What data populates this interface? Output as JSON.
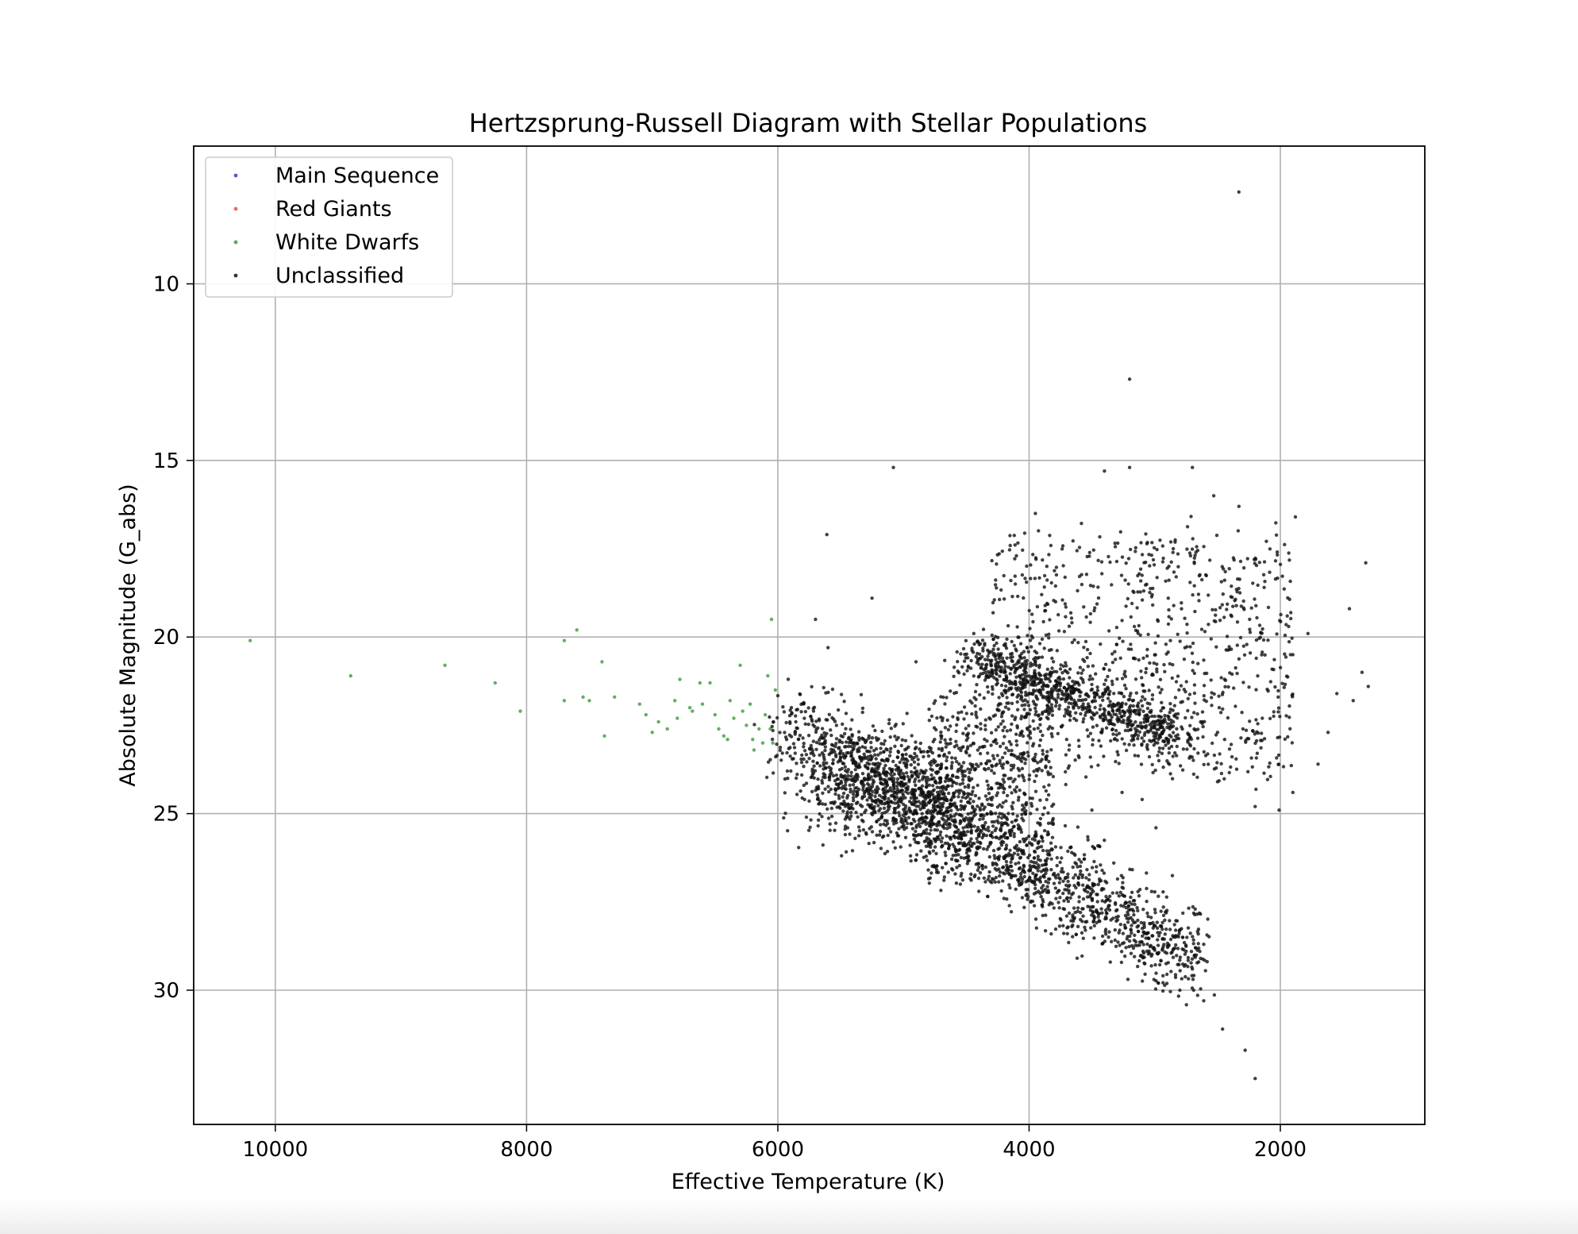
{
  "chart_data": {
    "type": "scatter",
    "title": "Hertzsprung-Russell Diagram with Stellar Populations",
    "xlabel": "Effective Temperature (K)",
    "ylabel": "Absolute Magnitude (G_abs)",
    "xlim": [
      10650,
      850
    ],
    "ylim": [
      33.8,
      6.1
    ],
    "x_inverted": true,
    "y_inverted": true,
    "x_ticks": [
      10000,
      8000,
      6000,
      4000,
      2000
    ],
    "y_ticks": [
      10,
      15,
      20,
      25,
      30
    ],
    "grid": true,
    "legend_position": "top-left",
    "series": [
      {
        "name": "Main Sequence",
        "color": "#3b3bd6",
        "points": []
      },
      {
        "name": "Red Giants",
        "color": "#e05050",
        "points": []
      },
      {
        "name": "White Dwarfs",
        "color": "#3c9a3c",
        "points": [
          [
            10200,
            20.1
          ],
          [
            9400,
            21.1
          ],
          [
            8650,
            20.8
          ],
          [
            8250,
            21.3
          ],
          [
            8050,
            22.1
          ],
          [
            7700,
            20.1
          ],
          [
            7600,
            19.8
          ],
          [
            7700,
            21.8
          ],
          [
            7550,
            21.7
          ],
          [
            7500,
            21.8
          ],
          [
            7400,
            20.7
          ],
          [
            7380,
            22.8
          ],
          [
            7300,
            21.7
          ],
          [
            7100,
            21.9
          ],
          [
            7050,
            22.2
          ],
          [
            7000,
            22.7
          ],
          [
            6950,
            22.4
          ],
          [
            6880,
            22.6
          ],
          [
            6820,
            21.8
          ],
          [
            6800,
            22.3
          ],
          [
            6780,
            21.2
          ],
          [
            6700,
            22.0
          ],
          [
            6680,
            22.1
          ],
          [
            6620,
            21.3
          ],
          [
            6600,
            21.9
          ],
          [
            6540,
            21.3
          ],
          [
            6500,
            22.2
          ],
          [
            6470,
            22.6
          ],
          [
            6430,
            22.8
          ],
          [
            6400,
            22.9
          ],
          [
            6380,
            21.8
          ],
          [
            6350,
            22.3
          ],
          [
            6300,
            20.8
          ],
          [
            6280,
            22.1
          ],
          [
            6250,
            22.5
          ],
          [
            6220,
            21.9
          ],
          [
            6200,
            22.9
          ],
          [
            6190,
            23.2
          ],
          [
            6150,
            22.6
          ],
          [
            6120,
            23.0
          ],
          [
            6100,
            22.2
          ],
          [
            6080,
            21.1
          ],
          [
            6060,
            22.6
          ],
          [
            6050,
            19.5
          ],
          [
            6040,
            23.0
          ],
          [
            6020,
            21.5
          ]
        ]
      },
      {
        "name": "Unclassified",
        "color": "#111111",
        "points": [
          [
            2330,
            7.4
          ],
          [
            3200,
            12.7
          ],
          [
            5080,
            15.2
          ],
          [
            3400,
            15.3
          ],
          [
            3200,
            15.2
          ],
          [
            2700,
            15.2
          ],
          [
            2530,
            16.0
          ],
          [
            2330,
            16.3
          ],
          [
            1880,
            16.6
          ],
          [
            3950,
            16.5
          ],
          [
            5610,
            17.1
          ],
          [
            5250,
            18.9
          ],
          [
            5700,
            19.5
          ],
          [
            5600,
            20.3
          ],
          [
            4440,
            19.9
          ],
          [
            4900,
            20.7
          ],
          [
            1320,
            17.9
          ],
          [
            1450,
            19.2
          ],
          [
            1350,
            21.0
          ],
          [
            1300,
            21.4
          ],
          [
            1420,
            21.8
          ],
          [
            1550,
            21.6
          ],
          [
            1620,
            22.7
          ],
          [
            1700,
            23.6
          ],
          [
            1900,
            24.4
          ],
          [
            2010,
            24.9
          ],
          [
            2200,
            24.8
          ],
          [
            4400,
            27.2
          ],
          [
            4200,
            27.4
          ],
          [
            2990,
            25.4
          ],
          [
            3260,
            24.4
          ],
          [
            3100,
            24.6
          ],
          [
            5080,
            25.8
          ],
          [
            3500,
            24.9
          ],
          [
            2750,
            28.9
          ],
          [
            2700,
            29.4
          ],
          [
            2610,
            28.7
          ],
          [
            2650,
            29.2
          ],
          [
            2800,
            30.0
          ],
          [
            2690,
            30.0
          ],
          [
            2610,
            30.3
          ],
          [
            2460,
            31.1
          ],
          [
            2280,
            31.7
          ],
          [
            2200,
            32.5
          ],
          [
            1780,
            19.9
          ],
          [
            1900,
            20.5
          ]
        ]
      }
    ]
  }
}
